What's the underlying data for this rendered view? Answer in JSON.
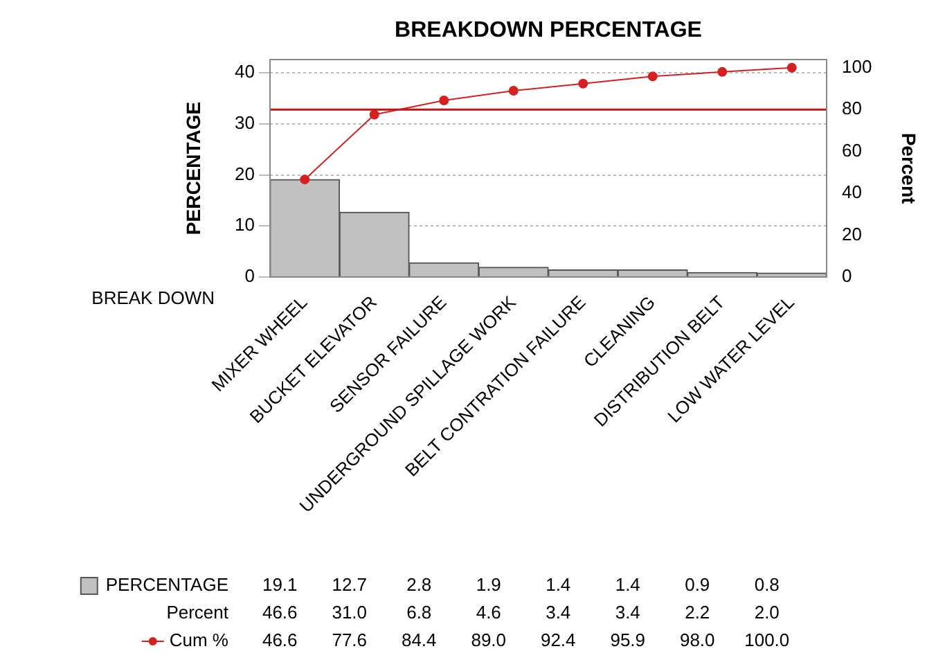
{
  "chart_data": {
    "type": "bar",
    "title": "BREAKDOWN PERCENTAGE",
    "xlabel": "BREAK DOWN",
    "ylabel": "PERCENTAGE",
    "y2label": "Percent",
    "categories": [
      "MIXER WHEEL",
      "BUCKET ELEVATOR",
      "SENSOR FAILURE",
      "UNDERGROUND SPILLAGE WORK",
      "BELT CONTRATION FAILURE",
      "CLEANING",
      "DISTRIBUTION BELT",
      "LOW WATER LEVEL"
    ],
    "series": [
      {
        "name": "PERCENTAGE",
        "color": "#c0c0c0",
        "values": [
          19.1,
          12.7,
          2.8,
          1.9,
          1.4,
          1.4,
          0.9,
          0.8
        ]
      },
      {
        "name": "Cum %",
        "type": "line",
        "axis": "y2",
        "color": "#d62020",
        "marker": "circle",
        "values": [
          46.6,
          77.6,
          84.4,
          89.0,
          92.4,
          95.9,
          98.0,
          100.0
        ],
        "value_labels": [
          "46.6",
          "77.6",
          "84.4",
          "89.0",
          "92.4",
          "95.9",
          "98.0",
          "100.0"
        ]
      }
    ],
    "data_labels": true,
    "annotations": [
      "Percent",
      "46.6",
      "31.0",
      "6.8",
      "4.6",
      "3.4",
      "3.4",
      "2.2",
      "2.0"
    ],
    "ylim": [
      0,
      42.6
    ],
    "yticks": [
      0,
      10,
      20,
      30,
      40
    ],
    "y2lim": [
      0,
      103.9
    ],
    "y2ticks": [
      0,
      20,
      40,
      60,
      80,
      100
    ],
    "ref_lines": [
      {
        "axis": "y2",
        "value": 80,
        "color": "#cc1010"
      }
    ],
    "grid": "y",
    "legend": "bottom left"
  }
}
